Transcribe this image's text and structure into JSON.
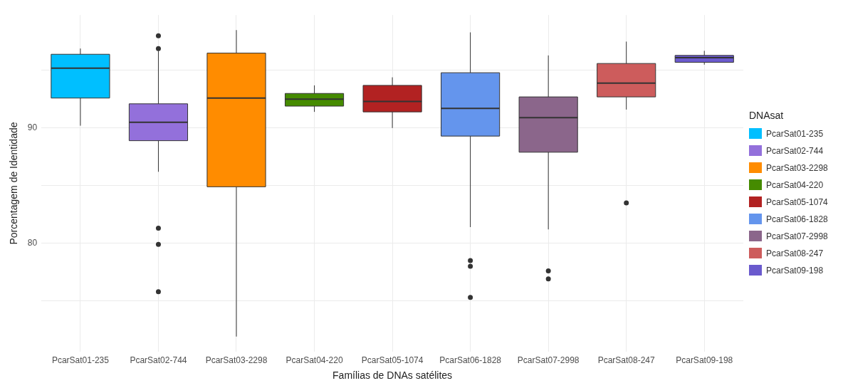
{
  "chart_data": {
    "type": "box",
    "xlabel": "Famílias de DNAs satélites",
    "ylabel": "Porcentagem de Identidade",
    "legend_title": "DNAsat",
    "legend": "right",
    "grid": true,
    "categories": [
      "PcarSat01-235",
      "PcarSat02-744",
      "PcarSat03-2298",
      "PcarSat04-220",
      "PcarSat05-1074",
      "PcarSat06-1828",
      "PcarSat07-2998",
      "PcarSat08-247",
      "PcarSat09-198"
    ],
    "series": [
      {
        "name": "PcarSat01-235",
        "color": "#00bfff",
        "boxes": [
          {
            "low": 90.2,
            "q1": 92.6,
            "median": 95.2,
            "q3": 96.4,
            "high": 96.9
          },
          null,
          null,
          null,
          null,
          null,
          null,
          null,
          null
        ]
      },
      {
        "name": "PcarSat02-744",
        "color": "#9370db",
        "boxes": [
          null,
          {
            "low": 86.2,
            "q1": 88.9,
            "median": 90.5,
            "q3": 92.1,
            "high": 96.7,
            "outliers": [
              98.0,
              96.9,
              81.3,
              79.9,
              75.8
            ]
          },
          null,
          null,
          null,
          null,
          null,
          null,
          null
        ]
      },
      {
        "name": "PcarSat03-2298",
        "color": "#ff8c00",
        "boxes": [
          null,
          null,
          {
            "low": 71.9,
            "q1": 84.9,
            "median": 92.6,
            "q3": 96.5,
            "high": 98.5
          },
          null,
          null,
          null,
          null,
          null,
          null
        ]
      },
      {
        "name": "PcarSat04-220",
        "color": "#458b00",
        "boxes": [
          null,
          null,
          null,
          {
            "low": 91.4,
            "q1": 91.9,
            "median": 92.5,
            "q3": 93.0,
            "high": 93.7
          },
          null,
          null,
          null,
          null,
          null
        ]
      },
      {
        "name": "PcarSat05-1074",
        "color": "#b22222",
        "boxes": [
          null,
          null,
          null,
          null,
          {
            "low": 90.0,
            "q1": 91.4,
            "median": 92.3,
            "q3": 93.7,
            "high": 94.4
          },
          null,
          null,
          null,
          null
        ]
      },
      {
        "name": "PcarSat06-1828",
        "color": "#6495ed",
        "boxes": [
          null,
          null,
          null,
          null,
          null,
          {
            "low": 81.4,
            "q1": 89.3,
            "median": 91.7,
            "q3": 94.8,
            "high": 98.3,
            "outliers": [
              78.5,
              78.0,
              75.3
            ]
          },
          null,
          null,
          null
        ]
      },
      {
        "name": "PcarSat07-2998",
        "color": "#8b668b",
        "boxes": [
          null,
          null,
          null,
          null,
          null,
          null,
          {
            "low": 81.2,
            "q1": 87.9,
            "median": 90.9,
            "q3": 92.7,
            "high": 96.3,
            "outliers": [
              77.6,
              76.9
            ]
          },
          null,
          null
        ]
      },
      {
        "name": "PcarSat08-247",
        "color": "#cd5c5c",
        "boxes": [
          null,
          null,
          null,
          null,
          null,
          null,
          null,
          {
            "low": 91.6,
            "q1": 92.7,
            "median": 93.9,
            "q3": 95.6,
            "high": 97.5,
            "outliers": [
              83.5
            ]
          },
          null
        ]
      },
      {
        "name": "PcarSat09-198",
        "color": "#6a5acd",
        "boxes": [
          null,
          null,
          null,
          null,
          null,
          null,
          null,
          null,
          {
            "low": 95.5,
            "q1": 95.7,
            "median": 96.1,
            "q3": 96.3,
            "high": 96.7
          }
        ]
      }
    ],
    "ylim": [
      70.6,
      99.8
    ],
    "yticks": [
      {
        "value": 75,
        "label": null
      },
      80,
      {
        "value": 85,
        "label": null
      },
      90,
      {
        "value": 95,
        "label": null
      }
    ]
  }
}
